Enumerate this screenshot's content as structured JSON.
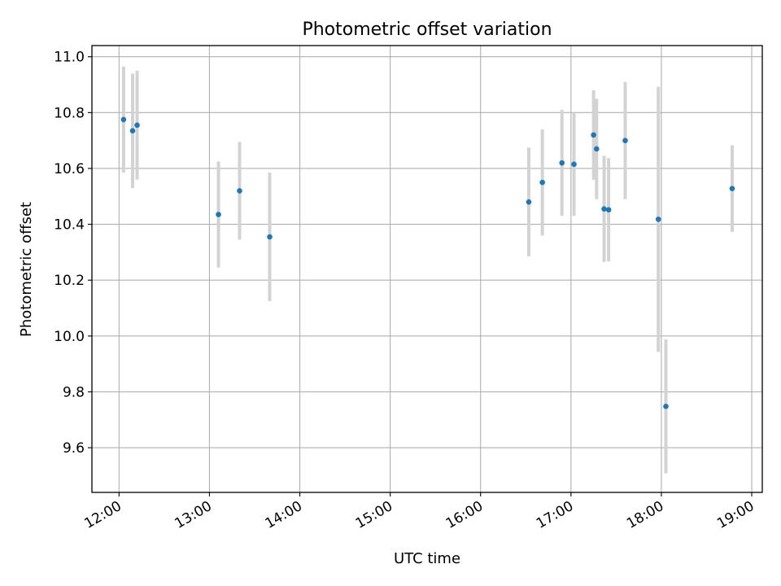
{
  "chart_data": {
    "type": "scatter",
    "title": "Photometric offset variation",
    "xlabel": "UTC time",
    "ylabel": "Photometric offset",
    "xlim": [
      "11:42",
      "19:07"
    ],
    "ylim": [
      9.44,
      11.04
    ],
    "x_ticks": [
      "12:00",
      "13:00",
      "14:00",
      "15:00",
      "16:00",
      "17:00",
      "18:00",
      "19:00"
    ],
    "y_ticks": [
      "9.6",
      "9.8",
      "10.0",
      "10.2",
      "10.4",
      "10.6",
      "10.8",
      "11.0"
    ],
    "grid": true,
    "marker_color": "#1f77b4",
    "errorbar_color": "#d3d3d3",
    "points": [
      {
        "x": "12:03",
        "y": 10.775,
        "err": 0.19
      },
      {
        "x": "12:09",
        "y": 10.735,
        "err": 0.205
      },
      {
        "x": "12:12",
        "y": 10.755,
        "err": 0.195
      },
      {
        "x": "13:06",
        "y": 10.435,
        "err": 0.19
      },
      {
        "x": "13:20",
        "y": 10.52,
        "err": 0.175
      },
      {
        "x": "13:40",
        "y": 10.355,
        "err": 0.23
      },
      {
        "x": "16:32",
        "y": 10.48,
        "err": 0.195
      },
      {
        "x": "16:41",
        "y": 10.55,
        "err": 0.19
      },
      {
        "x": "16:54",
        "y": 10.62,
        "err": 0.19
      },
      {
        "x": "17:02",
        "y": 10.615,
        "err": 0.185
      },
      {
        "x": "17:15",
        "y": 10.72,
        "err": 0.16
      },
      {
        "x": "17:17",
        "y": 10.67,
        "err": 0.18
      },
      {
        "x": "17:22",
        "y": 10.455,
        "err": 0.19
      },
      {
        "x": "17:25",
        "y": 10.452,
        "err": 0.185
      },
      {
        "x": "17:36",
        "y": 10.7,
        "err": 0.21
      },
      {
        "x": "17:58",
        "y": 10.418,
        "err": 0.475
      },
      {
        "x": "18:03",
        "y": 9.748,
        "err": 0.24
      },
      {
        "x": "18:47",
        "y": 10.528,
        "err": 0.155
      }
    ]
  }
}
